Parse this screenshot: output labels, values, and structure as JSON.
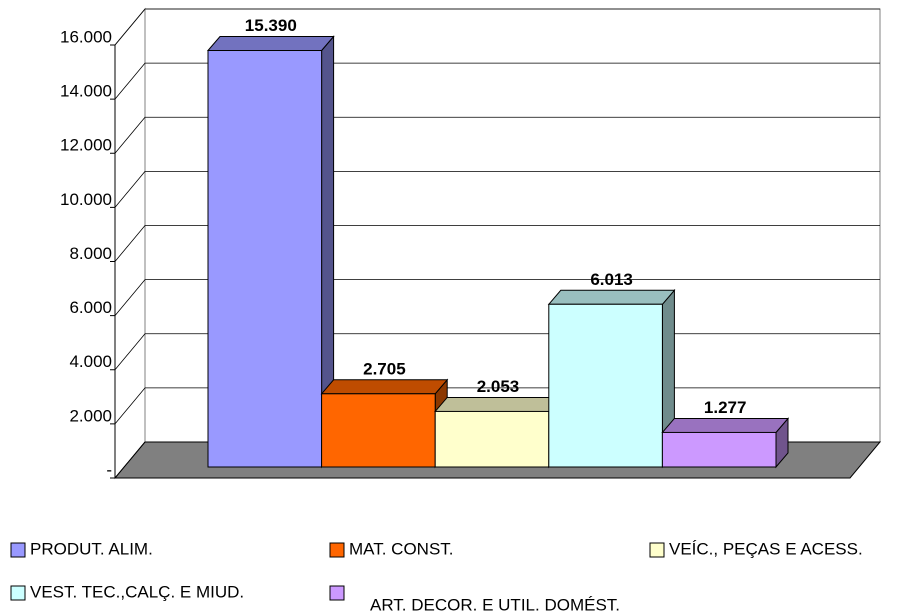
{
  "chart_data": {
    "type": "bar3d",
    "series": [
      {
        "name": "PRODUT. ALIM.",
        "color": "#9999ff",
        "values": [
          15390
        ],
        "value_labels": [
          "15.390"
        ]
      },
      {
        "name": "MAT. CONST.",
        "color": "#ff6600",
        "values": [
          2705
        ],
        "value_labels": [
          "2.705"
        ]
      },
      {
        "name": "VEÍC., PEÇAS E ACESS.",
        "color": "#ffffcc",
        "values": [
          2053
        ],
        "value_labels": [
          "2.053"
        ]
      },
      {
        "name": "VEST. TEC.,CALÇ. E MIUD.",
        "color": "#ccffff",
        "values": [
          6013
        ],
        "value_labels": [
          "6.013"
        ]
      },
      {
        "name": "ART. DECOR. E UTIL. DOMÉST.",
        "color": "#cc99ff",
        "values": [
          1277
        ],
        "value_labels": [
          "1.277"
        ]
      }
    ],
    "ylim": [
      0,
      16000
    ],
    "yticks": [
      {
        "value": 0,
        "label": "-"
      },
      {
        "value": 2000,
        "label": "2.000"
      },
      {
        "value": 4000,
        "label": "4.000"
      },
      {
        "value": 6000,
        "label": "6.000"
      },
      {
        "value": 8000,
        "label": "8.000"
      },
      {
        "value": 10000,
        "label": "10.000"
      },
      {
        "value": 12000,
        "label": "12.000"
      },
      {
        "value": 14000,
        "label": "14.000"
      },
      {
        "value": 16000,
        "label": "16.000"
      }
    ],
    "grid": true
  }
}
